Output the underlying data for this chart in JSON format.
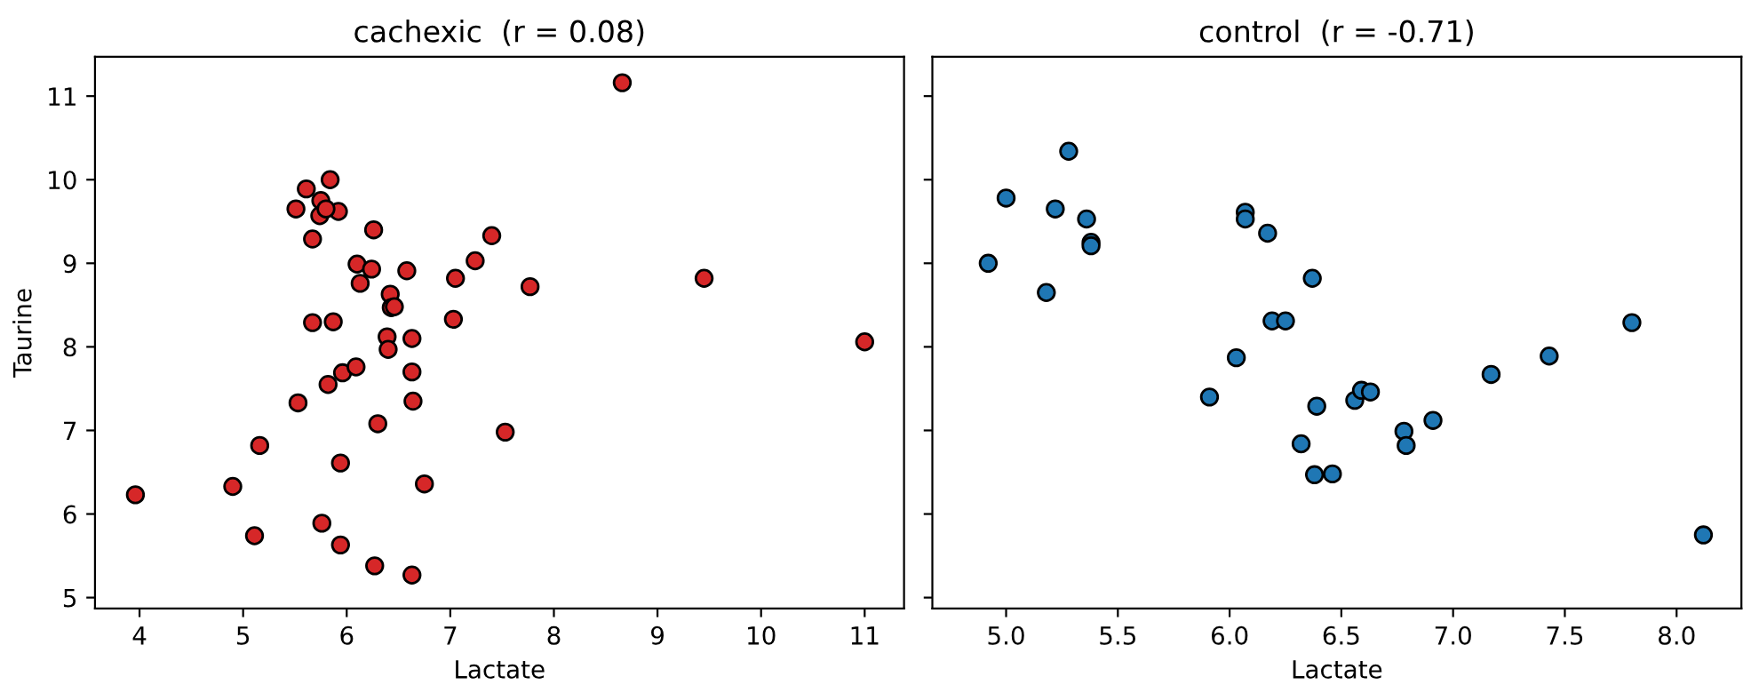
{
  "chart_data": [
    {
      "type": "scatter",
      "title": "cachexic  (r = 0.08)",
      "xlabel": "Lactate",
      "ylabel": "Taurine",
      "xlim": [
        3.57,
        11.38
      ],
      "ylim": [
        4.87,
        11.47
      ],
      "xticks": [
        4,
        5,
        6,
        7,
        8,
        9,
        10,
        11
      ],
      "yticks": [
        5,
        6,
        7,
        8,
        9,
        10,
        11
      ],
      "grid": false,
      "marker": "circle",
      "series": [
        {
          "color": "#d62728",
          "x": [
            3.96,
            4.9,
            5.11,
            5.16,
            5.53,
            5.51,
            5.61,
            5.67,
            5.67,
            5.74,
            5.75,
            5.76,
            5.82,
            5.84,
            5.87,
            5.92,
            5.94,
            5.94,
            5.96,
            5.8,
            6.09,
            6.1,
            6.13,
            6.24,
            6.26,
            6.27,
            6.3,
            6.39,
            6.4,
            6.42,
            6.43,
            6.46,
            6.58,
            6.63,
            6.63,
            6.64,
            6.63,
            6.75,
            7.03,
            7.05,
            7.24,
            7.4,
            7.53,
            7.77,
            8.66,
            9.45,
            11.0
          ],
          "values": [
            6.23,
            6.33,
            5.74,
            6.82,
            7.33,
            9.65,
            9.89,
            9.29,
            8.29,
            9.57,
            9.75,
            5.89,
            7.55,
            10.0,
            8.3,
            9.62,
            6.61,
            5.63,
            7.69,
            9.65,
            7.76,
            8.99,
            8.76,
            8.93,
            9.4,
            5.38,
            7.08,
            8.12,
            7.97,
            8.63,
            8.47,
            8.48,
            8.91,
            8.1,
            7.7,
            7.35,
            5.27,
            6.36,
            8.33,
            8.82,
            9.03,
            9.33,
            6.98,
            8.72,
            11.16,
            8.82,
            8.06
          ]
        }
      ]
    },
    {
      "type": "scatter",
      "title": "control  (r = -0.71)",
      "xlabel": "Lactate",
      "xlim": [
        4.67,
        8.29
      ],
      "ylim": [
        4.87,
        11.47
      ],
      "xticks": [
        {
          "value": 5,
          "label": "5.0"
        },
        5.5,
        {
          "value": 6,
          "label": "6.0"
        },
        6.5,
        {
          "value": 7,
          "label": "7.0"
        },
        7.5,
        {
          "value": 8,
          "label": "8.0"
        }
      ],
      "yticks": [
        5,
        6,
        7,
        8,
        9,
        10,
        11
      ],
      "tick_labels": "x",
      "grid": false,
      "marker": "circle",
      "series": [
        {
          "color": "#1f77b4",
          "x": [
            4.92,
            5.0,
            5.18,
            5.22,
            5.28,
            5.36,
            5.38,
            5.38,
            5.91,
            6.03,
            6.07,
            6.07,
            6.17,
            6.19,
            6.25,
            6.37,
            6.39,
            6.32,
            6.38,
            6.46,
            6.56,
            6.59,
            6.63,
            6.78,
            6.79,
            6.91,
            7.17,
            7.43,
            7.8,
            8.12
          ],
          "values": [
            9.0,
            9.78,
            8.65,
            9.65,
            10.34,
            9.53,
            9.25,
            9.21,
            7.4,
            7.87,
            9.61,
            9.53,
            9.36,
            8.31,
            8.31,
            8.82,
            7.29,
            6.84,
            6.47,
            6.48,
            7.36,
            7.48,
            7.46,
            6.99,
            6.82,
            7.12,
            7.67,
            7.89,
            8.29,
            5.75
          ]
        }
      ]
    }
  ]
}
